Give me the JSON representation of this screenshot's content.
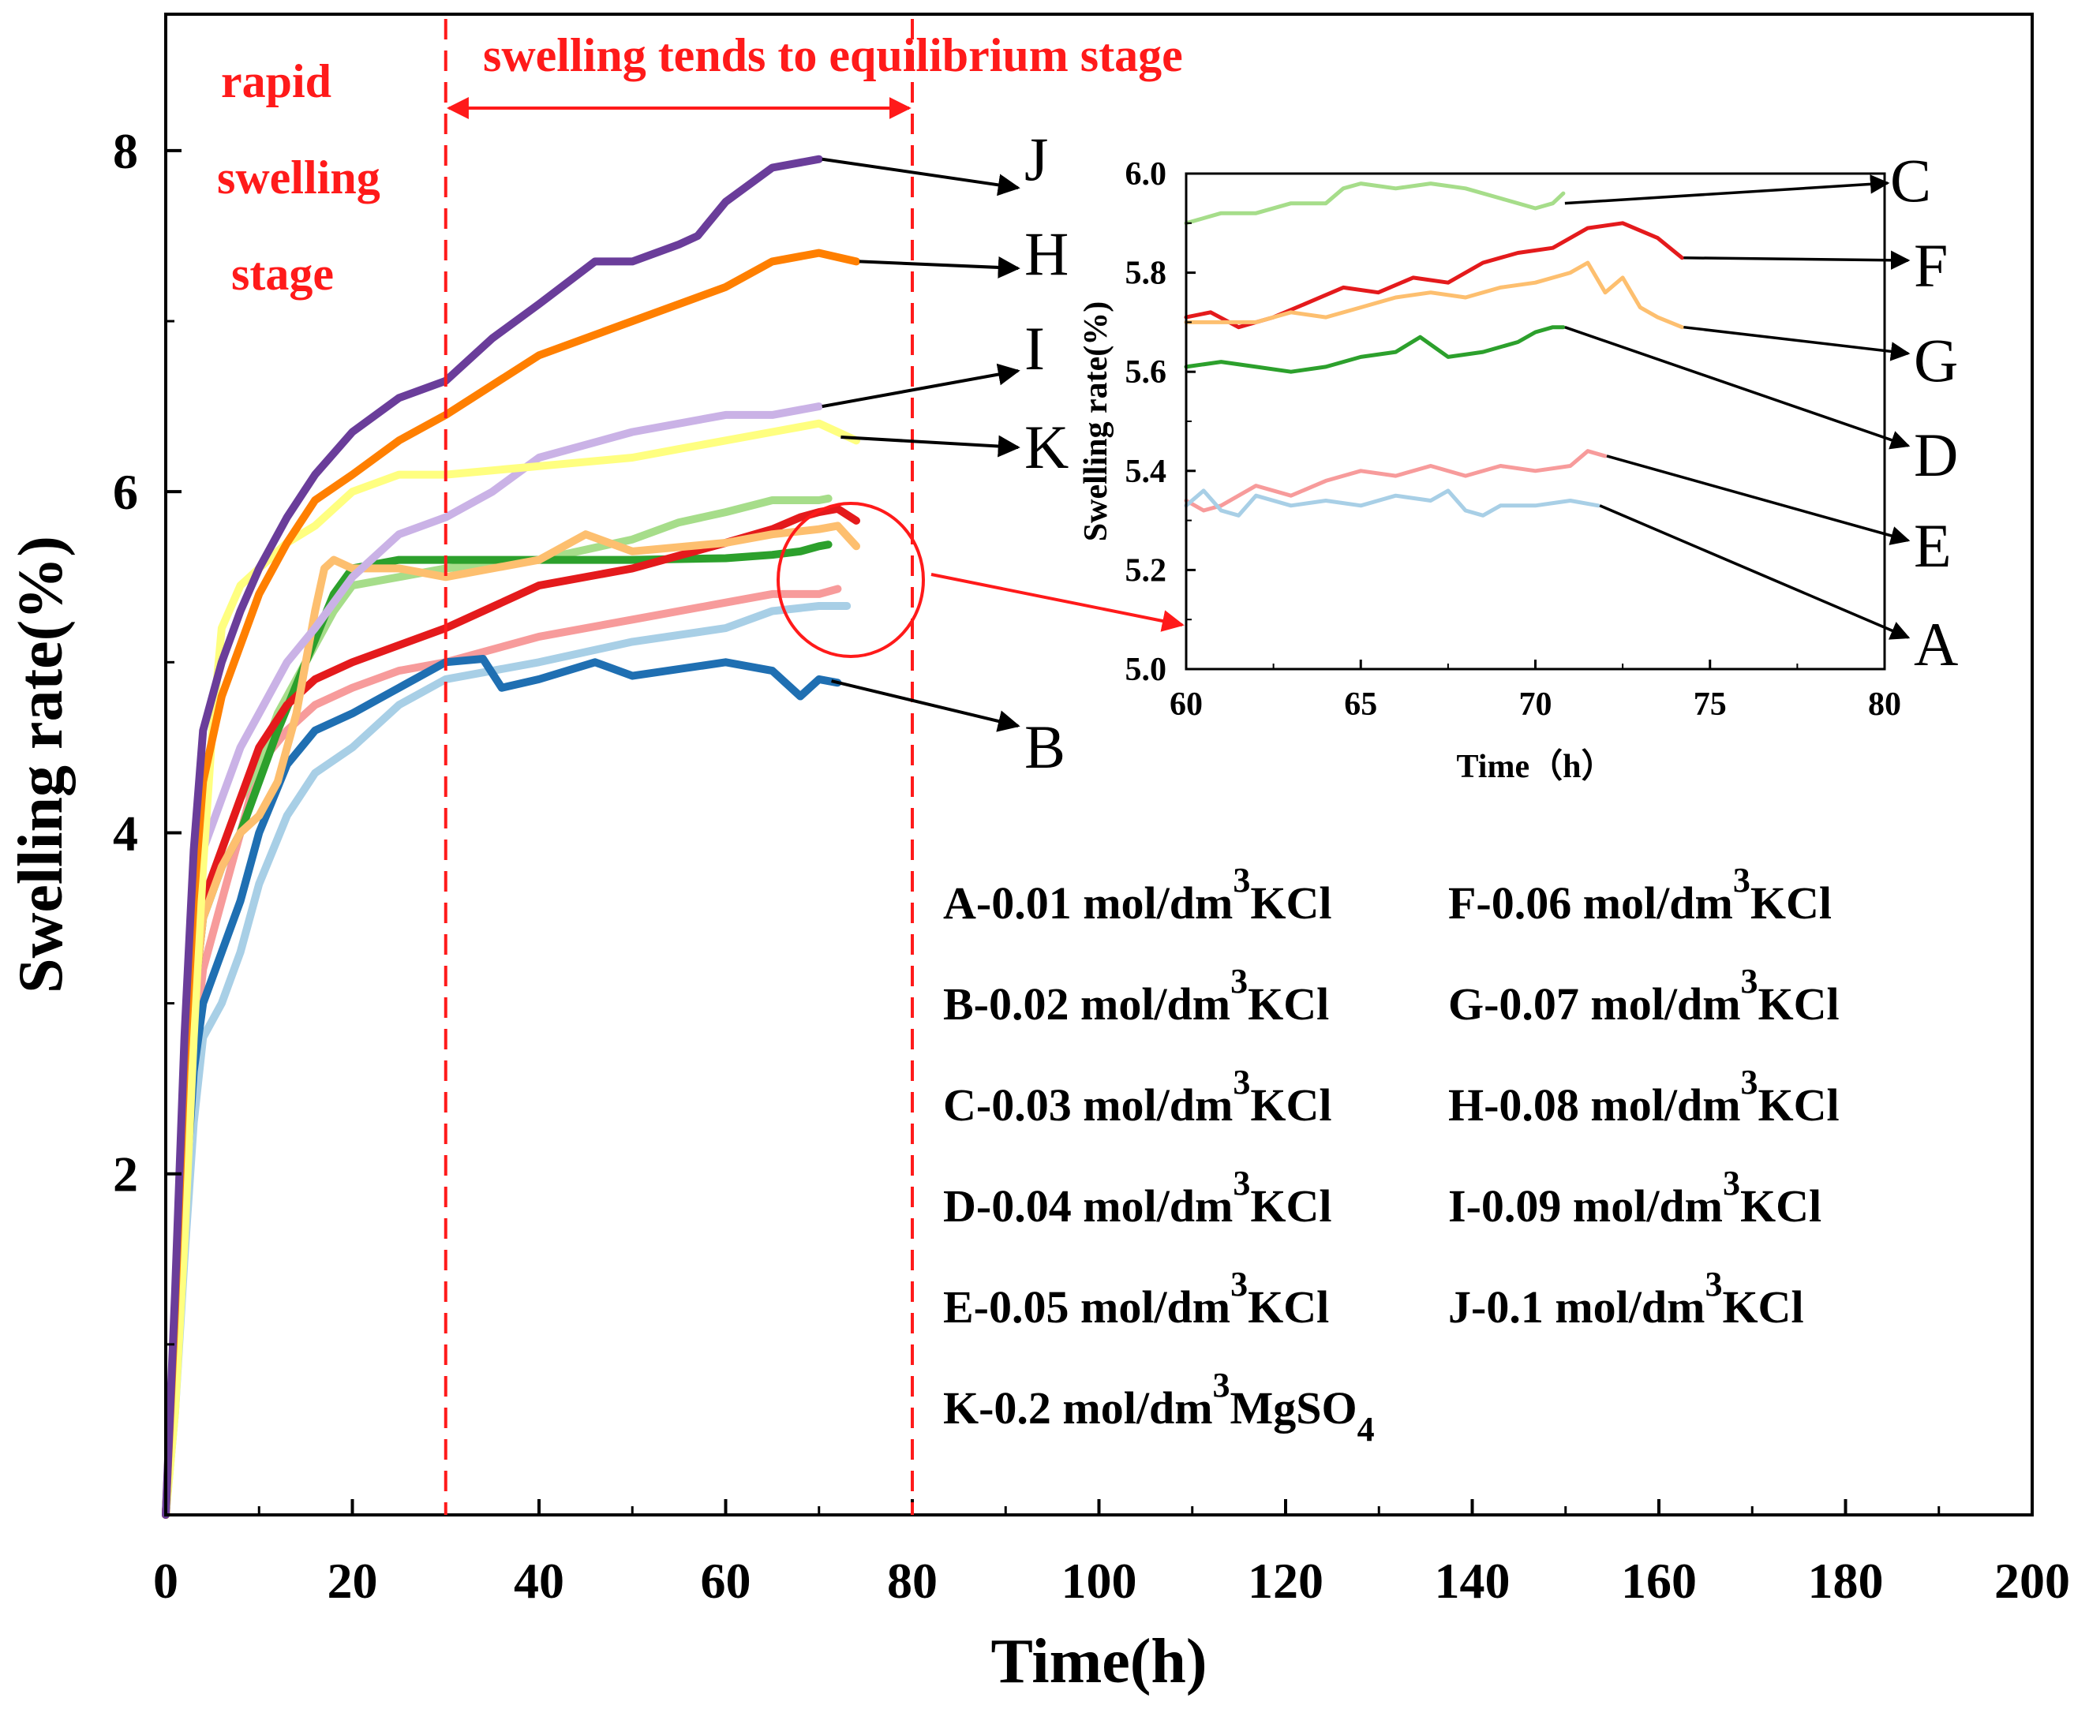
{
  "colors": {
    "A": "#a8cfe6",
    "B": "#1f6fb2",
    "C": "#a6dd8a",
    "D": "#2ca02c",
    "E": "#f79b9b",
    "F": "#e41a1c",
    "G": "#fdbf6f",
    "H": "#ff7f00",
    "I": "#cab2e6",
    "J": "#6a3d9a",
    "K": "#ffff80",
    "annotation": "#ff1a1a",
    "axes": "#000000"
  },
  "chart_data": [
    {
      "id": "main",
      "type": "line",
      "xlabel": "Time(h)",
      "ylabel": "Swelling rate(%)",
      "xlim": [
        0,
        200
      ],
      "ylim": [
        0,
        8.8
      ],
      "xticks": [
        "0",
        "20",
        "40",
        "60",
        "80",
        "100",
        "120",
        "140",
        "160",
        "180",
        "200"
      ],
      "yticks": [
        "2",
        "4",
        "6",
        "8"
      ],
      "grid": false,
      "vlines": [
        30,
        80
      ],
      "stage_labels": {
        "rapid_1": "rapid",
        "rapid_2": "swelling",
        "rapid_3": "stage",
        "equilibrium": "swelling tends to equilibrium stage"
      },
      "series": [
        {
          "name": "A",
          "x": [
            0,
            1,
            2,
            3,
            4,
            6,
            8,
            10,
            13,
            16,
            20,
            25,
            30,
            40,
            50,
            60,
            65,
            70,
            73
          ],
          "y": [
            0,
            0.6,
            1.5,
            2.3,
            2.8,
            3.0,
            3.3,
            3.7,
            4.1,
            4.35,
            4.5,
            4.75,
            4.9,
            5.0,
            5.12,
            5.2,
            5.3,
            5.33,
            5.33
          ]
        },
        {
          "name": "B",
          "x": [
            0,
            1,
            2,
            3,
            4,
            6,
            8,
            10,
            13,
            16,
            20,
            25,
            30,
            34,
            36,
            40,
            46,
            50,
            60,
            65,
            68,
            70,
            72
          ],
          "y": [
            0,
            0.8,
            1.8,
            2.6,
            3.0,
            3.3,
            3.6,
            4.0,
            4.4,
            4.6,
            4.7,
            4.85,
            5.0,
            5.02,
            4.85,
            4.9,
            5.0,
            4.92,
            5.0,
            4.95,
            4.8,
            4.9,
            4.88
          ]
        },
        {
          "name": "C",
          "x": [
            0,
            1,
            2,
            3,
            4,
            6,
            8,
            10,
            12,
            15,
            18,
            20,
            25,
            30,
            40,
            50,
            55,
            60,
            65,
            70,
            71
          ],
          "y": [
            0,
            1.0,
            2.2,
            3.0,
            3.6,
            3.9,
            4.2,
            4.4,
            4.7,
            5.0,
            5.3,
            5.45,
            5.5,
            5.55,
            5.6,
            5.72,
            5.82,
            5.88,
            5.95,
            5.95,
            5.96
          ]
        },
        {
          "name": "D",
          "x": [
            0,
            1,
            2,
            3,
            4,
            6,
            8,
            10,
            12,
            15,
            18,
            20,
            25,
            30,
            40,
            50,
            60,
            65,
            68,
            70,
            71
          ],
          "y": [
            0,
            1.0,
            2.2,
            3.0,
            3.5,
            3.8,
            4.0,
            4.3,
            4.6,
            5.0,
            5.4,
            5.55,
            5.6,
            5.6,
            5.6,
            5.6,
            5.61,
            5.63,
            5.65,
            5.68,
            5.69
          ]
        },
        {
          "name": "E",
          "x": [
            0,
            1,
            2,
            3,
            4,
            6,
            8,
            10,
            13,
            16,
            20,
            25,
            30,
            40,
            50,
            60,
            65,
            70,
            72
          ],
          "y": [
            0,
            0.8,
            1.8,
            2.7,
            3.2,
            3.6,
            4.0,
            4.4,
            4.6,
            4.75,
            4.85,
            4.95,
            5.0,
            5.15,
            5.25,
            5.35,
            5.4,
            5.4,
            5.43
          ]
        },
        {
          "name": "F",
          "x": [
            0,
            1,
            2,
            3,
            4,
            6,
            8,
            10,
            13,
            16,
            20,
            25,
            30,
            40,
            50,
            60,
            65,
            68,
            70,
            72,
            74
          ],
          "y": [
            0,
            1.0,
            2.2,
            3.1,
            3.6,
            3.9,
            4.2,
            4.5,
            4.75,
            4.9,
            5.0,
            5.1,
            5.2,
            5.45,
            5.55,
            5.7,
            5.78,
            5.85,
            5.88,
            5.9,
            5.83
          ]
        },
        {
          "name": "G",
          "x": [
            0,
            1,
            2,
            3,
            4,
            6,
            8,
            10,
            12,
            14,
            16,
            17,
            18,
            20,
            25,
            30,
            40,
            45,
            50,
            60,
            65,
            70,
            72,
            74
          ],
          "y": [
            0,
            1.0,
            2.2,
            3.0,
            3.5,
            3.8,
            4.0,
            4.1,
            4.3,
            4.7,
            5.3,
            5.55,
            5.6,
            5.55,
            5.55,
            5.5,
            5.6,
            5.75,
            5.65,
            5.7,
            5.75,
            5.78,
            5.8,
            5.68
          ]
        },
        {
          "name": "H",
          "x": [
            0,
            1,
            2,
            3,
            4,
            6,
            8,
            10,
            13,
            16,
            20,
            25,
            30,
            40,
            50,
            60,
            65,
            70,
            74
          ],
          "y": [
            0,
            1.2,
            2.6,
            3.6,
            4.3,
            4.8,
            5.1,
            5.4,
            5.7,
            5.95,
            6.1,
            6.3,
            6.45,
            6.8,
            7.0,
            7.2,
            7.35,
            7.4,
            7.35
          ]
        },
        {
          "name": "I",
          "x": [
            0,
            1,
            2,
            3,
            4,
            6,
            8,
            10,
            13,
            16,
            20,
            25,
            30,
            35,
            40,
            50,
            60,
            65,
            70
          ],
          "y": [
            0,
            1.0,
            2.3,
            3.3,
            3.9,
            4.2,
            4.5,
            4.7,
            5.0,
            5.2,
            5.5,
            5.75,
            5.85,
            6.0,
            6.2,
            6.35,
            6.45,
            6.45,
            6.5
          ]
        },
        {
          "name": "J",
          "x": [
            0,
            1,
            2,
            3,
            4,
            6,
            8,
            10,
            13,
            16,
            20,
            25,
            30,
            35,
            40,
            46,
            50,
            55,
            57,
            60,
            65,
            70
          ],
          "y": [
            0,
            1.3,
            2.8,
            3.9,
            4.6,
            5.0,
            5.3,
            5.55,
            5.85,
            6.1,
            6.35,
            6.55,
            6.65,
            6.9,
            7.1,
            7.35,
            7.35,
            7.45,
            7.5,
            7.7,
            7.9,
            7.95
          ]
        },
        {
          "name": "K",
          "x": [
            0,
            1,
            2,
            3,
            4,
            5,
            6,
            8,
            10,
            13,
            16,
            20,
            25,
            30,
            40,
            50,
            55,
            60,
            65,
            70,
            74
          ],
          "y": [
            0,
            0.6,
            1.6,
            2.8,
            3.8,
            4.6,
            5.2,
            5.45,
            5.55,
            5.7,
            5.8,
            6.0,
            6.1,
            6.1,
            6.15,
            6.2,
            6.25,
            6.3,
            6.35,
            6.4,
            6.3
          ]
        }
      ],
      "callouts": [
        {
          "label": "J",
          "from": [
            70,
            7.95
          ]
        },
        {
          "label": "H",
          "from": [
            74,
            7.35
          ]
        },
        {
          "label": "I",
          "from": [
            70,
            6.5
          ]
        },
        {
          "label": "K",
          "from": [
            72,
            6.32
          ]
        },
        {
          "label": "B",
          "from": [
            71,
            4.89
          ]
        }
      ],
      "legend": [
        [
          "A-0.01 mol/dm",
          "KCl"
        ],
        [
          "F-0.06 mol/dm",
          "KCl"
        ],
        [
          "B-0.02 mol/dm",
          "KCl"
        ],
        [
          "G-0.07 mol/dm",
          "KCl"
        ],
        [
          "C-0.03 mol/dm",
          "KCl"
        ],
        [
          "H-0.08 mol/dm",
          "KCl"
        ],
        [
          "D-0.04 mol/dm",
          "KCl"
        ],
        [
          "I-0.09 mol/dm",
          "KCl"
        ],
        [
          "E-0.05 mol/dm",
          "KCl"
        ],
        [
          "J-0.1 mol/dm",
          "KCl"
        ],
        [
          "K-0.2 mol/dm",
          "MgSO"
        ]
      ],
      "legend_superscript": "3",
      "legend_subscript": "4"
    },
    {
      "id": "inset",
      "type": "line",
      "xlabel": "Time（h）",
      "ylabel": "Swelling rate(%)",
      "xlim": [
        60,
        80
      ],
      "ylim": [
        5.0,
        6.0
      ],
      "xticks": [
        "60",
        "65",
        "70",
        "75",
        "80"
      ],
      "yticks": [
        "5.0",
        "5.2",
        "5.4",
        "5.6",
        "5.8",
        "6.0"
      ],
      "grid": false,
      "series": [
        {
          "name": "C",
          "x": [
            60,
            61,
            62,
            63,
            64,
            64.5,
            65,
            66,
            67,
            68,
            69,
            70,
            70.5,
            70.8
          ],
          "y": [
            5.9,
            5.92,
            5.92,
            5.94,
            5.94,
            5.97,
            5.98,
            5.97,
            5.98,
            5.97,
            5.95,
            5.93,
            5.94,
            5.96
          ]
        },
        {
          "name": "F",
          "x": [
            60,
            60.7,
            61.5,
            62.5,
            63.5,
            64.5,
            65.5,
            66.5,
            67.5,
            68.5,
            69.5,
            70.5,
            71.5,
            72.5,
            73.5,
            74.2
          ],
          "y": [
            5.71,
            5.72,
            5.69,
            5.71,
            5.74,
            5.77,
            5.76,
            5.79,
            5.78,
            5.82,
            5.84,
            5.85,
            5.89,
            5.9,
            5.87,
            5.83
          ]
        },
        {
          "name": "G",
          "x": [
            60,
            61,
            62,
            63,
            64,
            65,
            66,
            67,
            68,
            69,
            70,
            71,
            71.5,
            72,
            72.5,
            73,
            73.5,
            74.2
          ],
          "y": [
            5.7,
            5.7,
            5.7,
            5.72,
            5.71,
            5.73,
            5.75,
            5.76,
            5.75,
            5.77,
            5.78,
            5.8,
            5.82,
            5.76,
            5.79,
            5.73,
            5.71,
            5.69
          ]
        },
        {
          "name": "D",
          "x": [
            60,
            61,
            62,
            63,
            64,
            65,
            66,
            66.7,
            67.5,
            68.5,
            69.5,
            70,
            70.5,
            70.8
          ],
          "y": [
            5.61,
            5.62,
            5.61,
            5.6,
            5.61,
            5.63,
            5.64,
            5.67,
            5.63,
            5.64,
            5.66,
            5.68,
            5.69,
            5.69
          ]
        },
        {
          "name": "E",
          "x": [
            60,
            60.5,
            61,
            62,
            63,
            64,
            65,
            66,
            67,
            68,
            69,
            70,
            71,
            71.5,
            72
          ],
          "y": [
            5.34,
            5.32,
            5.33,
            5.37,
            5.35,
            5.38,
            5.4,
            5.39,
            5.41,
            5.39,
            5.41,
            5.4,
            5.41,
            5.44,
            5.43
          ]
        },
        {
          "name": "A",
          "x": [
            60,
            60.5,
            61,
            61.5,
            62,
            63,
            64,
            65,
            66,
            67,
            67.5,
            68,
            68.5,
            69,
            70,
            71,
            71.8
          ],
          "y": [
            5.33,
            5.36,
            5.32,
            5.31,
            5.35,
            5.33,
            5.34,
            5.33,
            5.35,
            5.34,
            5.36,
            5.32,
            5.31,
            5.33,
            5.33,
            5.34,
            5.33
          ]
        }
      ],
      "callouts": [
        {
          "label": "C",
          "from": [
            70.8,
            5.94
          ]
        },
        {
          "label": "F",
          "from": [
            74.2,
            5.83
          ]
        },
        {
          "label": "G",
          "from": [
            74.2,
            5.69
          ]
        },
        {
          "label": "D",
          "from": [
            70.8,
            5.69
          ]
        },
        {
          "label": "E",
          "from": [
            72,
            5.43
          ]
        },
        {
          "label": "A",
          "from": [
            71.8,
            5.33
          ]
        }
      ]
    }
  ]
}
